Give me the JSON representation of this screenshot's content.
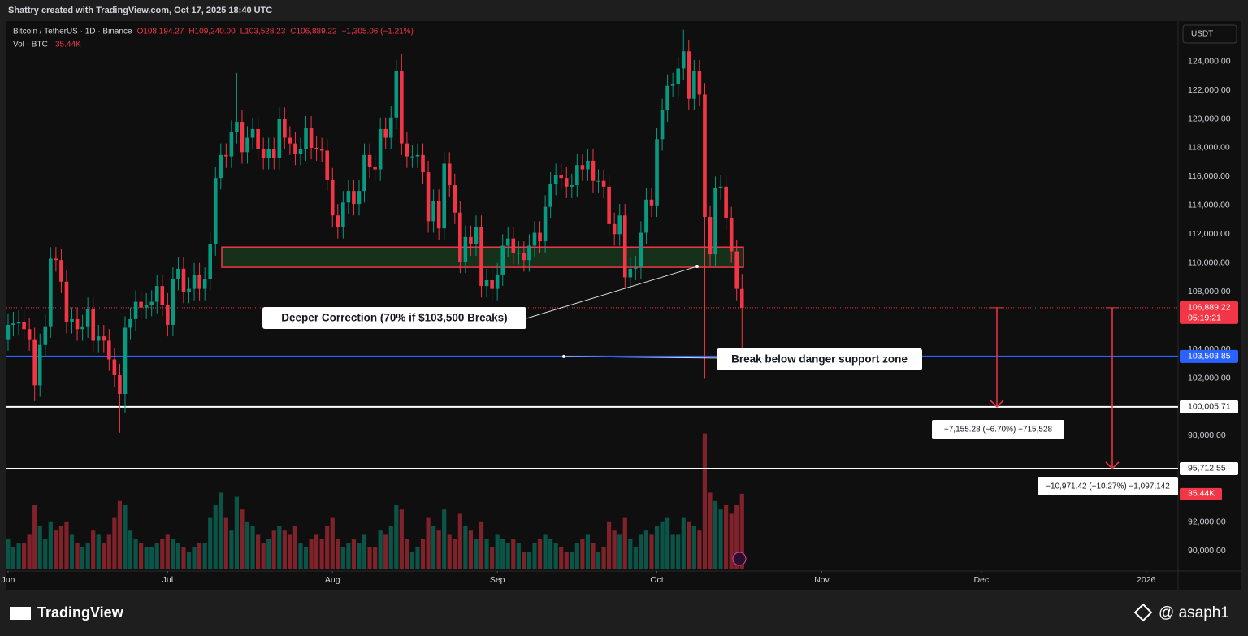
{
  "header": {
    "caption": "Shattry created with TradingView.com, Oct 17, 2025 18:40 UTC"
  },
  "footer": {
    "brand": "TradingView",
    "author": "@ asaph1"
  },
  "chart_data": {
    "type": "candlestick",
    "symbol": "Bitcoin / TetherUS · 1D · Binance",
    "ohlc_legend": [
      "O108,194.27",
      "H109,240.00",
      "L103,528.23",
      "C106,889.22",
      "−1,305.06 (−1.21%)"
    ],
    "volume_title": "Vol · BTC",
    "volume_legend": "35.44K",
    "currency": "USDT",
    "up_color": "#089981",
    "down_color": "#f23645",
    "grid": false,
    "xlim": [
      -0.3,
      220
    ],
    "xticks": [
      {
        "value": 0,
        "label": "Jun"
      },
      {
        "value": 30,
        "label": "Jul"
      },
      {
        "value": 61,
        "label": "Aug"
      },
      {
        "value": 92,
        "label": "Sep"
      },
      {
        "value": 122,
        "label": "Oct"
      },
      {
        "value": 153,
        "label": "Nov"
      },
      {
        "value": 183,
        "label": "Dec"
      },
      {
        "value": 214,
        "label": "2026"
      }
    ],
    "ylim": [
      88600,
      126800
    ],
    "yticks": [
      {
        "value": 124000,
        "label": "124,000.00"
      },
      {
        "value": 122000,
        "label": "122,000.00"
      },
      {
        "value": 120000,
        "label": "120,000.00"
      },
      {
        "value": 118000,
        "label": "118,000.00"
      },
      {
        "value": 116000,
        "label": "116,000.00"
      },
      {
        "value": 114000,
        "label": "114,000.00"
      },
      {
        "value": 112000,
        "label": "112,000.00"
      },
      {
        "value": 110000,
        "label": "110,000.00"
      },
      {
        "value": 108000,
        "label": "108,000.00"
      },
      {
        "value": 104000,
        "label": "104,000.00"
      },
      {
        "value": 102000,
        "label": "102,000.00"
      },
      {
        "value": 98000,
        "label": "98,000.00"
      },
      {
        "value": 92000,
        "label": "92,000.00"
      },
      {
        "value": 90000,
        "label": "90,000.00"
      }
    ],
    "candles": {
      "open": [
        104700,
        105700,
        105800,
        105900,
        105400,
        104700,
        101500,
        104300,
        105600,
        110300,
        110200,
        108700,
        105900,
        106100,
        105400,
        105600,
        106800,
        104600,
        104900,
        104600,
        103300,
        102200,
        100900,
        105500,
        106100,
        107300,
        106900,
        107100,
        107300,
        108400,
        107100,
        105700,
        108900,
        109600,
        108000,
        108200,
        109200,
        108200,
        108900,
        111300,
        115900,
        117500,
        117400,
        119100,
        119800,
        117700,
        118700,
        119300,
        117900,
        117300,
        117900,
        117300,
        120000,
        118700,
        118300,
        117600,
        117900,
        119400,
        118000,
        117900,
        117800,
        115800,
        113300,
        112500,
        114200,
        115000,
        114100,
        115000,
        117500,
        116700,
        116500,
        119300,
        118700,
        120100,
        123300,
        118300,
        117400,
        117400,
        117500,
        116300,
        112900,
        114300,
        112400,
        116900,
        115400,
        113500,
        110100,
        111800,
        111300,
        112500,
        108400,
        108800,
        108200,
        109200,
        111200,
        111700,
        110700,
        110700,
        110200,
        111200,
        112100,
        111500,
        113900,
        115500,
        116100,
        115900,
        115300,
        115400,
        116800,
        116500,
        117100,
        115700,
        115700,
        115300,
        112700,
        112000,
        113300,
        109000,
        109600,
        109700,
        112100,
        114400,
        114000,
        118600,
        120600,
        122300,
        122400,
        123500,
        124700,
        121400,
        123300,
        121700,
        113200,
        110600,
        115200,
        115300,
        113100,
        110800,
        108194.27
      ],
      "high": [
        106500,
        106600,
        106700,
        106700,
        106200,
        105500,
        105100,
        106400,
        111100,
        111100,
        111000,
        109500,
        106900,
        106900,
        106400,
        107600,
        107600,
        105700,
        105700,
        105400,
        104100,
        103000,
        106300,
        106900,
        108100,
        108100,
        107900,
        108100,
        109200,
        109200,
        107900,
        109700,
        110400,
        110400,
        109000,
        110000,
        110000,
        109700,
        112100,
        116700,
        118300,
        118300,
        119900,
        123200,
        120600,
        119500,
        120100,
        120100,
        118700,
        118700,
        118700,
        120800,
        120800,
        119500,
        119100,
        118700,
        120200,
        120200,
        118800,
        118700,
        118600,
        116600,
        114100,
        115000,
        115800,
        115800,
        115800,
        118300,
        118300,
        117500,
        120100,
        120100,
        120900,
        124100,
        124500,
        119100,
        118200,
        118300,
        118300,
        117100,
        115100,
        115100,
        117700,
        117700,
        116200,
        114300,
        112600,
        112600,
        113300,
        113300,
        109600,
        109600,
        110000,
        112000,
        112500,
        112500,
        111500,
        111500,
        112000,
        112900,
        112900,
        114700,
        116300,
        116900,
        116900,
        116700,
        116200,
        117600,
        117600,
        117900,
        117900,
        116500,
        116500,
        116100,
        113500,
        114100,
        114100,
        110400,
        110500,
        112900,
        115200,
        115200,
        119400,
        121400,
        123100,
        123200,
        124300,
        126200,
        125500,
        124100,
        124100,
        122500,
        114000,
        116000,
        116100,
        116100,
        113900,
        111600,
        109240
      ],
      "low": [
        103900,
        104900,
        105000,
        104600,
        103900,
        100400,
        100700,
        103500,
        104800,
        109400,
        107900,
        105100,
        105100,
        104600,
        104600,
        104800,
        103800,
        103800,
        103800,
        102500,
        101400,
        98200,
        99600,
        104700,
        105300,
        106100,
        106100,
        106300,
        106500,
        106300,
        104900,
        104900,
        108100,
        107200,
        107200,
        107400,
        107400,
        107400,
        108100,
        110500,
        115100,
        116600,
        116600,
        118300,
        116900,
        116900,
        117900,
        117100,
        116500,
        116500,
        116500,
        116500,
        117900,
        117500,
        116800,
        116800,
        117100,
        117200,
        117100,
        117000,
        115000,
        112500,
        111700,
        111700,
        113400,
        113300,
        113300,
        114200,
        115900,
        115700,
        115700,
        117900,
        117900,
        119300,
        117500,
        116600,
        116600,
        116600,
        115500,
        112100,
        112100,
        111600,
        111600,
        114600,
        112700,
        109300,
        109300,
        110500,
        110500,
        107600,
        107600,
        107400,
        107400,
        108400,
        110400,
        109900,
        109900,
        109400,
        109400,
        110400,
        110700,
        110700,
        113100,
        114700,
        115100,
        114500,
        114500,
        114600,
        115700,
        115700,
        114900,
        114900,
        114500,
        111900,
        111200,
        111200,
        108200,
        108200,
        108800,
        108900,
        111300,
        113200,
        113200,
        117800,
        119800,
        121500,
        121600,
        122700,
        120600,
        120600,
        120900,
        102000,
        109800,
        109800,
        114400,
        112300,
        110000,
        107400,
        103528.23
      ],
      "close": [
        105700,
        105800,
        105900,
        105400,
        104700,
        101500,
        104300,
        105600,
        110300,
        110200,
        108700,
        105900,
        106100,
        105400,
        105600,
        106800,
        104600,
        104900,
        104600,
        103300,
        102200,
        100900,
        105500,
        106100,
        107300,
        106900,
        107100,
        107300,
        108400,
        107100,
        105700,
        108900,
        109600,
        108000,
        108200,
        109200,
        108200,
        108900,
        111300,
        115900,
        117500,
        117400,
        119100,
        119800,
        117700,
        118700,
        119300,
        117900,
        117300,
        117900,
        117300,
        120000,
        118700,
        118300,
        117600,
        117900,
        119400,
        118000,
        117900,
        117800,
        115800,
        113300,
        112500,
        114200,
        115000,
        114100,
        115000,
        117500,
        116700,
        116500,
        119300,
        118700,
        120100,
        123300,
        118300,
        117400,
        117400,
        117500,
        116300,
        112900,
        114300,
        112400,
        116900,
        115400,
        113500,
        110100,
        111800,
        111300,
        112500,
        108400,
        108800,
        108200,
        109200,
        111200,
        111700,
        110700,
        110700,
        110200,
        111200,
        112100,
        111500,
        113900,
        115500,
        116100,
        115900,
        115300,
        115400,
        116800,
        116500,
        117100,
        115700,
        115700,
        115300,
        112700,
        112000,
        113300,
        109000,
        109600,
        109700,
        112100,
        114400,
        114000,
        118600,
        120600,
        122300,
        122400,
        123500,
        124700,
        121400,
        123300,
        121700,
        113200,
        110600,
        115200,
        115300,
        113100,
        110800,
        108200,
        106889.22
      ]
    },
    "volume": [
      14,
      10,
      12,
      12,
      16,
      30,
      20,
      14,
      22,
      18,
      20,
      22,
      16,
      12,
      10,
      12,
      18,
      16,
      12,
      16,
      24,
      32,
      30,
      18,
      14,
      12,
      10,
      10,
      12,
      14,
      16,
      14,
      12,
      10,
      8,
      10,
      12,
      12,
      24,
      30,
      36,
      24,
      18,
      34,
      28,
      22,
      20,
      16,
      12,
      14,
      18,
      20,
      18,
      16,
      20,
      12,
      10,
      14,
      16,
      14,
      20,
      24,
      14,
      10,
      12,
      14,
      12,
      16,
      10,
      10,
      18,
      16,
      20,
      30,
      28,
      14,
      8,
      10,
      14,
      24,
      20,
      18,
      28,
      16,
      14,
      26,
      20,
      18,
      14,
      22,
      14,
      10,
      16,
      14,
      12,
      14,
      12,
      8,
      8,
      12,
      14,
      16,
      14,
      12,
      10,
      8,
      8,
      12,
      14,
      16,
      12,
      8,
      10,
      22,
      18,
      16,
      24,
      14,
      10,
      16,
      18,
      16,
      20,
      22,
      24,
      16,
      16,
      24,
      22,
      20,
      18,
      64,
      36,
      32,
      28,
      30,
      26,
      30,
      35.44
    ],
    "volume_value_label": "35.44K",
    "last_price": {
      "value": 106889.22,
      "label": "106,889.22",
      "countdown": "05:19:21"
    },
    "levels": [
      {
        "value": 103503.85,
        "label": "103,503.85",
        "color": "#2962ff"
      },
      {
        "value": 100005.71,
        "label": "100,005.71",
        "color": "#ffffff"
      },
      {
        "value": 95712.55,
        "label": "95,712.55",
        "color": "#ffffff"
      }
    ],
    "zone": [
      109700,
      111100
    ],
    "annotations": [
      "Deeper Correction (70% if $103,500 Breaks)",
      "Break below danger support zone"
    ],
    "measures": [
      "−7,155.28 (−6.70%) −715,528",
      "−10,971.42 (−10.27%) −1,097,142"
    ]
  }
}
